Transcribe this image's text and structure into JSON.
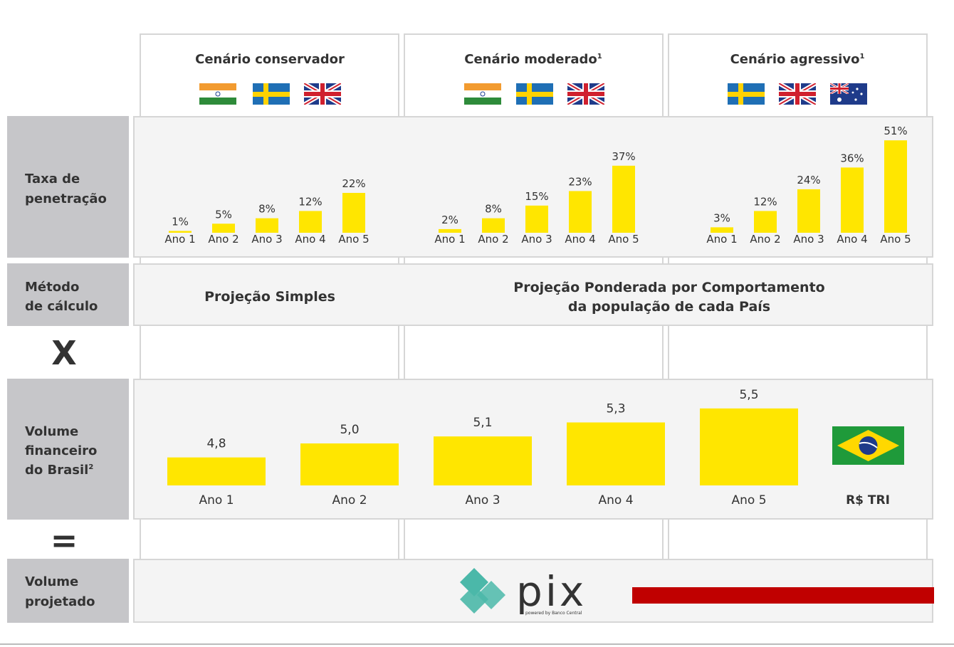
{
  "columns": [
    {
      "title": "Cenário conservador"
    },
    {
      "title": "Cenário moderado",
      "note": "1"
    },
    {
      "title": "Cenário agressivo",
      "note": "1"
    }
  ],
  "rows": [
    {
      "label": [
        "Taxa de",
        "penetração"
      ]
    },
    {
      "label": [
        "Método",
        "de cálculo"
      ]
    },
    {
      "label": [
        "Volume",
        "financeiro",
        "do Brasil"
      ],
      "note": "2"
    },
    {
      "label": [
        "Volume",
        "projetado"
      ]
    }
  ],
  "operators": [
    "X",
    "="
  ],
  "method": [
    [
      "Projeção Simples"
    ],
    [
      "Projeção Ponderada por Comportamento",
      "da população de cada País"
    ]
  ],
  "chart_data": [
    {
      "type": "bar",
      "categories": [
        "Ano 1",
        "Ano 2",
        "Ano 3",
        "Ano 4",
        "Ano 5"
      ],
      "values": [
        1,
        5,
        8,
        12,
        22
      ],
      "value_labels": [
        "1%",
        "5%",
        "8%",
        "12%",
        "22%"
      ],
      "color": "#ffe600",
      "ylim": [
        0,
        55
      ]
    },
    {
      "type": "bar",
      "categories": [
        "Ano 1",
        "Ano 2",
        "Ano 3",
        "Ano 4",
        "Ano 5"
      ],
      "values": [
        2,
        8,
        15,
        23,
        37
      ],
      "value_labels": [
        "2%",
        "8%",
        "15%",
        "23%",
        "37%"
      ],
      "color": "#ffe600",
      "ylim": [
        0,
        55
      ]
    },
    {
      "type": "bar",
      "categories": [
        "Ano 1",
        "Ano 2",
        "Ano 3",
        "Ano 4",
        "Ano 5"
      ],
      "values": [
        3,
        12,
        24,
        36,
        51
      ],
      "value_labels": [
        "3%",
        "12%",
        "24%",
        "36%",
        "51%"
      ],
      "color": "#ffe600",
      "ylim": [
        0,
        55
      ]
    },
    {
      "type": "bar",
      "categories": [
        "Ano 1",
        "Ano 2",
        "Ano 3",
        "Ano 4",
        "Ano 5"
      ],
      "values": [
        4.8,
        5.0,
        5.1,
        5.3,
        5.5
      ],
      "value_labels": [
        "4,8",
        "5,0",
        "5,1",
        "5,3",
        "5,5"
      ],
      "unit": "R$ TRI",
      "color": "#ffe600",
      "ylim": [
        4.4,
        5.6
      ]
    }
  ],
  "logo": {
    "name": "pix",
    "tagline": "powered by Banco Central"
  }
}
